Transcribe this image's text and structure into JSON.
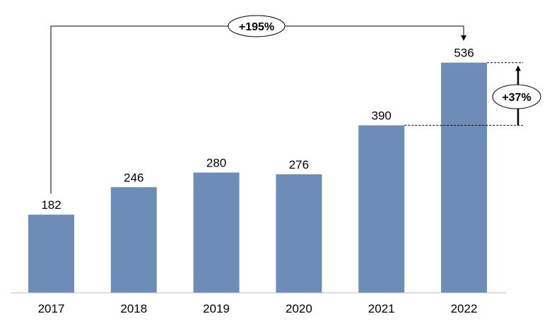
{
  "chart_data": {
    "type": "bar",
    "title": "",
    "xlabel": "",
    "ylabel": "",
    "categories": [
      "2017",
      "2018",
      "2019",
      "2020",
      "2021",
      "2022"
    ],
    "values": [
      182,
      246,
      280,
      276,
      390,
      536
    ],
    "data_labels": [
      "182",
      "246",
      "280",
      "276",
      "390",
      "536"
    ],
    "ylim": [
      0,
      600
    ],
    "grid": false,
    "legend": "none",
    "bar_color": "#6d8cb8",
    "annotations": [
      {
        "text": "+195%",
        "from": "2017",
        "to": "2022",
        "style": "bracket-arrow-top"
      },
      {
        "text": "+37%",
        "from": "2021",
        "to": "2022",
        "style": "vertical-arrow-right"
      }
    ]
  }
}
